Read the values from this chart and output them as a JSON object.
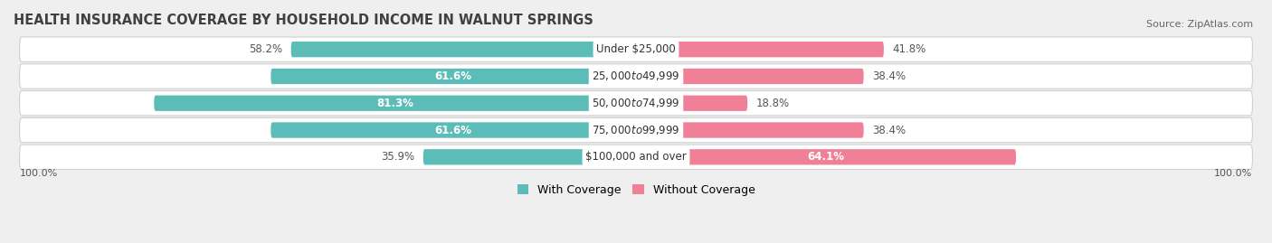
{
  "title": "HEALTH INSURANCE COVERAGE BY HOUSEHOLD INCOME IN WALNUT SPRINGS",
  "source": "Source: ZipAtlas.com",
  "categories": [
    "Under $25,000",
    "$25,000 to $49,999",
    "$50,000 to $74,999",
    "$75,000 to $99,999",
    "$100,000 and over"
  ],
  "with_coverage": [
    58.2,
    61.6,
    81.3,
    61.6,
    35.9
  ],
  "without_coverage": [
    41.8,
    38.4,
    18.8,
    38.4,
    64.1
  ],
  "color_with": "#5bbcb8",
  "color_without": "#f08098",
  "bar_height": 0.58,
  "background_color": "#efefef",
  "row_bg_light": "#f8f8f8",
  "row_bg_dark": "#e8e8e8",
  "title_fontsize": 10.5,
  "label_fontsize": 8.5,
  "pct_fontsize": 8.5,
  "legend_fontsize": 9,
  "source_fontsize": 8,
  "axis_label_fontsize": 8
}
